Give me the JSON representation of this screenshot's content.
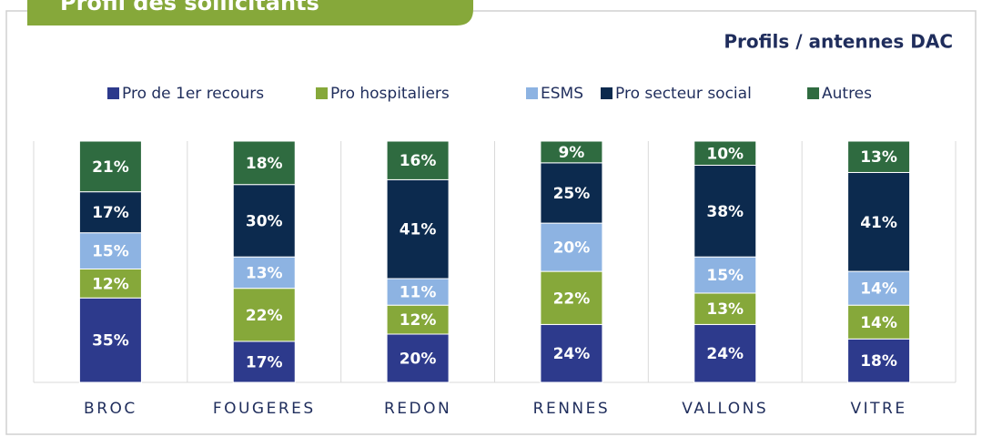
{
  "header": {
    "tab": "Profil des sollicitants"
  },
  "chart_data": {
    "type": "stacked_bar",
    "title": "Profils / antennes DAC",
    "categories": [
      "BROC",
      "FOUGERES",
      "REDON",
      "RENNES",
      "VALLONS",
      "VITRE"
    ],
    "ylim": [
      0,
      100
    ],
    "legend": "top",
    "series": [
      {
        "name": "Pro de 1er recours",
        "color": "#2d3a8c",
        "values": [
          35,
          17,
          20,
          24,
          24,
          18
        ],
        "value_labels": [
          "35%",
          "17%",
          "20%",
          "24%",
          "24%",
          "18%"
        ]
      },
      {
        "name": "Pro hospitaliers",
        "color": "#86a83a",
        "values": [
          12,
          22,
          12,
          22,
          13,
          14
        ],
        "value_labels": [
          "12%",
          "22%",
          "12%",
          "22%",
          "13%",
          "14%"
        ]
      },
      {
        "name": "ESMS",
        "color": "#8db3e2",
        "values": [
          15,
          13,
          11,
          20,
          15,
          14
        ],
        "value_labels": [
          "15%",
          "13%",
          "11%",
          "20%",
          "15%",
          "14%"
        ]
      },
      {
        "name": "Pro secteur social",
        "color": "#0c2a4e",
        "values": [
          17,
          30,
          41,
          25,
          38,
          41
        ],
        "value_labels": [
          "17%",
          "30%",
          "41%",
          "25%",
          "38%",
          "41%"
        ]
      },
      {
        "name": "Autres",
        "color": "#2f6b40",
        "values": [
          21,
          18,
          16,
          9,
          10,
          13
        ],
        "value_labels": [
          "21%",
          "18%",
          "16%",
          "9%",
          "10%",
          "13%"
        ]
      }
    ]
  }
}
